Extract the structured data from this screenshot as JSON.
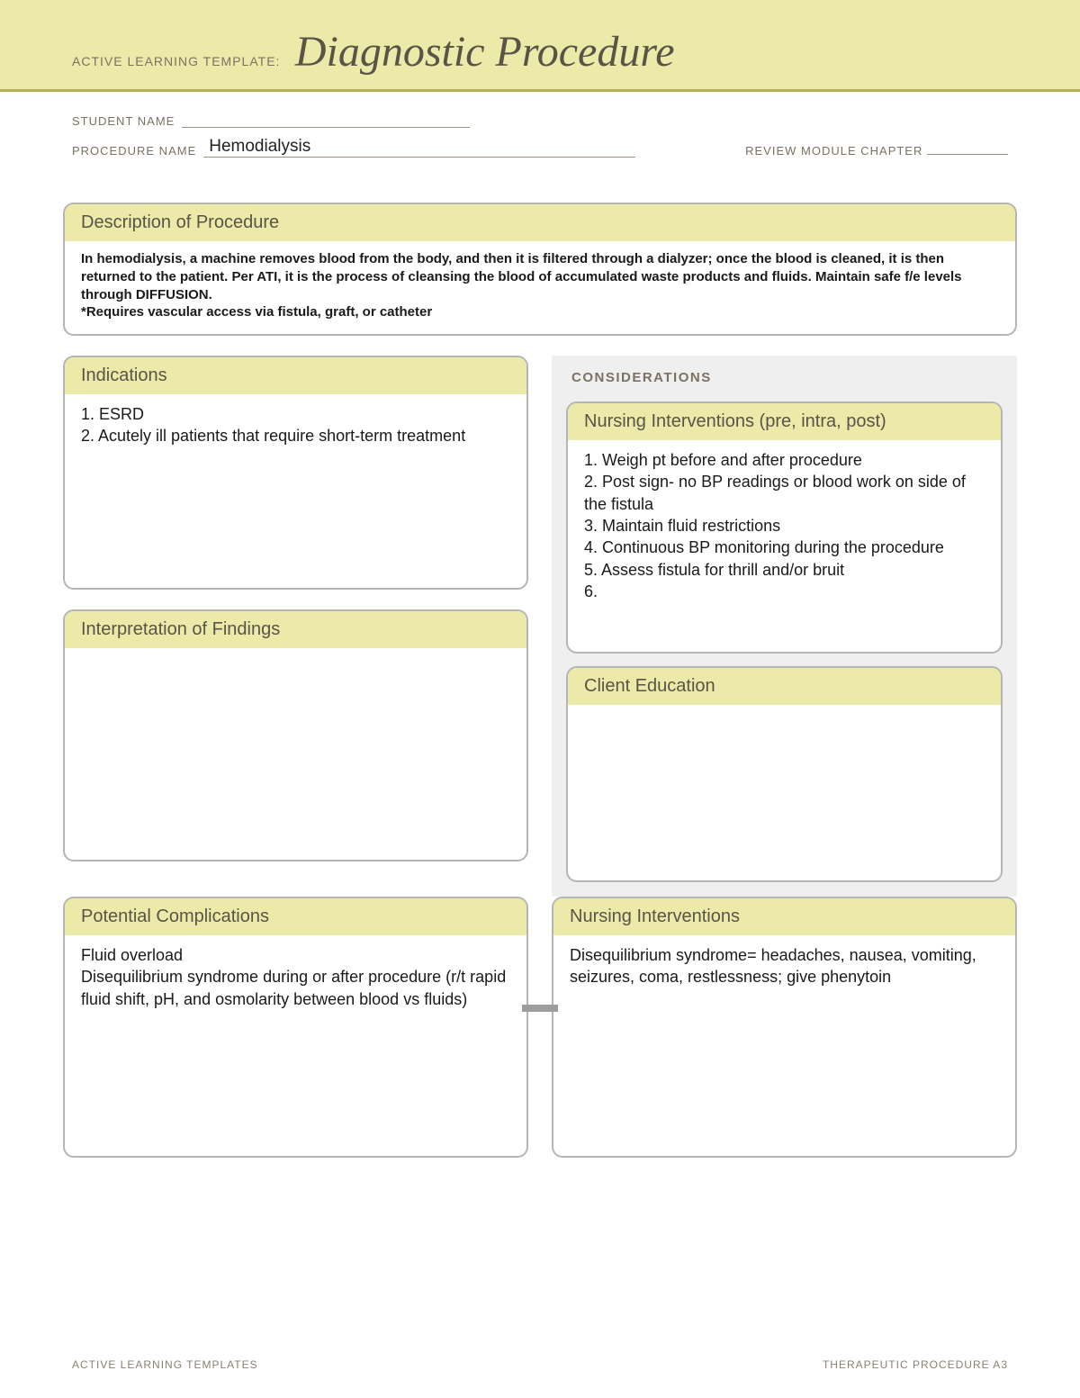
{
  "colors": {
    "header_bg": "#eceaa9",
    "header_rule": "#b7b04e",
    "box_header_bg": "#eceaa9",
    "box_border": "#b5b5b5",
    "text_dark": "#5a5348",
    "text_muted": "#7b7163",
    "considerations_bg": "#efefef",
    "connector": "#9e9e9e"
  },
  "header": {
    "small_label": "ACTIVE LEARNING TEMPLATE:",
    "big_title": "Diagnostic Procedure"
  },
  "meta": {
    "student_label": "STUDENT NAME",
    "student_value": "",
    "procedure_label": "PROCEDURE NAME",
    "procedure_value": "Hemodialysis",
    "review_label": "REVIEW MODULE CHAPTER",
    "review_value": ""
  },
  "description": {
    "title": "Description of Procedure",
    "body": "In hemodialysis, a machine removes blood from the body, and then it is filtered through a dialyzer; once the blood is cleaned, it is then returned to the patient. Per ATI, it is the process of cleansing the blood of accumulated waste products and fluids. Maintain safe f/e levels through DIFFUSION.\n*Requires vascular access via fistula, graft, or catheter"
  },
  "indications": {
    "title": "Indications",
    "body": "1. ESRD\n2. Acutely ill patients that require short-term treatment"
  },
  "considerations_label": "CONSIDERATIONS",
  "nursing_interventions": {
    "title": "Nursing Interventions (pre, intra, post)",
    "body": "1. Weigh pt before and after procedure\n2. Post sign- no BP readings or blood work on side of the fistula\n3. Maintain fluid restrictions\n4. Continuous BP monitoring during the procedure\n5. Assess fistula for thrill and/or bruit\n6."
  },
  "interpretation": {
    "title": "Interpretation of Findings",
    "body": ""
  },
  "client_education": {
    "title": "Client Education",
    "body": ""
  },
  "complications": {
    "title": "Potential Complications",
    "body": "Fluid overload\nDisequilibrium syndrome during or after procedure (r/t rapid fluid shift, pH, and osmolarity between blood vs fluids)"
  },
  "nursing_interventions2": {
    "title": "Nursing Interventions",
    "body": "Disequilibrium syndrome= headaches, nausea, vomiting, seizures, coma, restlessness; give phenytoin"
  },
  "footer": {
    "left": "ACTIVE LEARNING TEMPLATES",
    "right": "THERAPEUTIC PROCEDURE   A3"
  }
}
